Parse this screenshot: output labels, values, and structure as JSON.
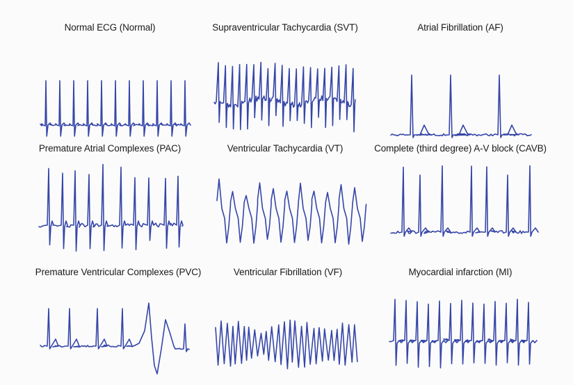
{
  "stroke_color": "#3545a8",
  "panels": [
    {
      "id": "normal",
      "title": "Normal ECG (Normal)"
    },
    {
      "id": "svt",
      "title": "Supraventricular Tachycardia (SVT)"
    },
    {
      "id": "af",
      "title": "Atrial Fibrillation (AF)"
    },
    {
      "id": "pac",
      "title": "Premature Atrial Complexes (PAC)"
    },
    {
      "id": "vt",
      "title": "Ventricular Tachycardia (VT)"
    },
    {
      "id": "cavb",
      "title": "Complete (third degree) A-V block (CAVB)"
    },
    {
      "id": "pvc",
      "title": "Premature Ventricular Complexes (PVC)"
    },
    {
      "id": "vf",
      "title": "Ventricular Fibrillation (VF)"
    },
    {
      "id": "mi",
      "title": "Myocardial infarction (MI)"
    }
  ]
}
